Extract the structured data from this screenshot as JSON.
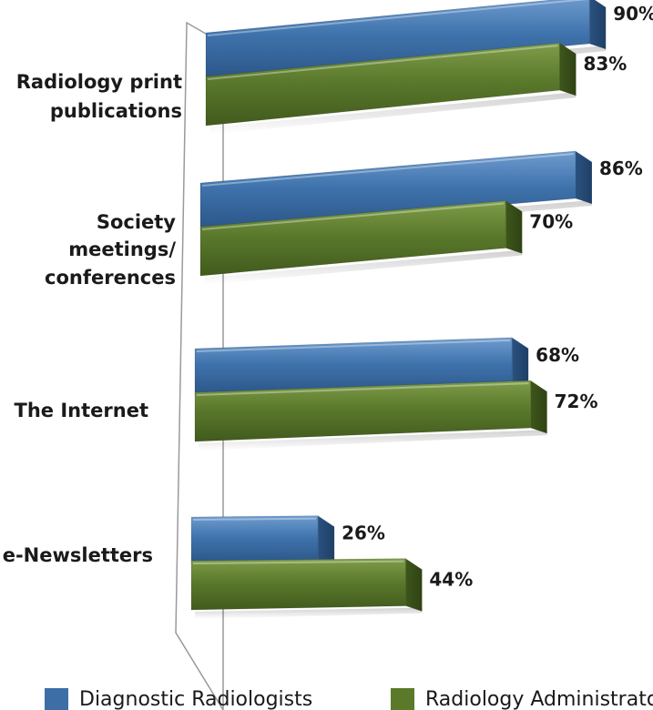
{
  "chart_data": {
    "type": "bar",
    "orientation": "horizontal",
    "categories": [
      [
        "Radiology print",
        "publications"
      ],
      [
        "Society",
        "meetings/",
        "conferences"
      ],
      [
        "The Internet"
      ],
      [
        "e-Newsletters"
      ]
    ],
    "series": [
      {
        "name": "Diagnostic Radiologists",
        "values": [
          90,
          86,
          68,
          26
        ],
        "labels": [
          "90%",
          "86%",
          "68%",
          "26%"
        ],
        "color": "#3d6fa6"
      },
      {
        "name": "Radiology Administrators",
        "values": [
          83,
          70,
          72,
          44
        ],
        "labels": [
          "83%",
          "70%",
          "72%",
          "44%"
        ],
        "color": "#5a7a2a"
      }
    ],
    "unit": "%",
    "xlim": [
      0,
      100
    ],
    "grid": false,
    "legend_position": "bottom",
    "style": "3d-perspective"
  }
}
